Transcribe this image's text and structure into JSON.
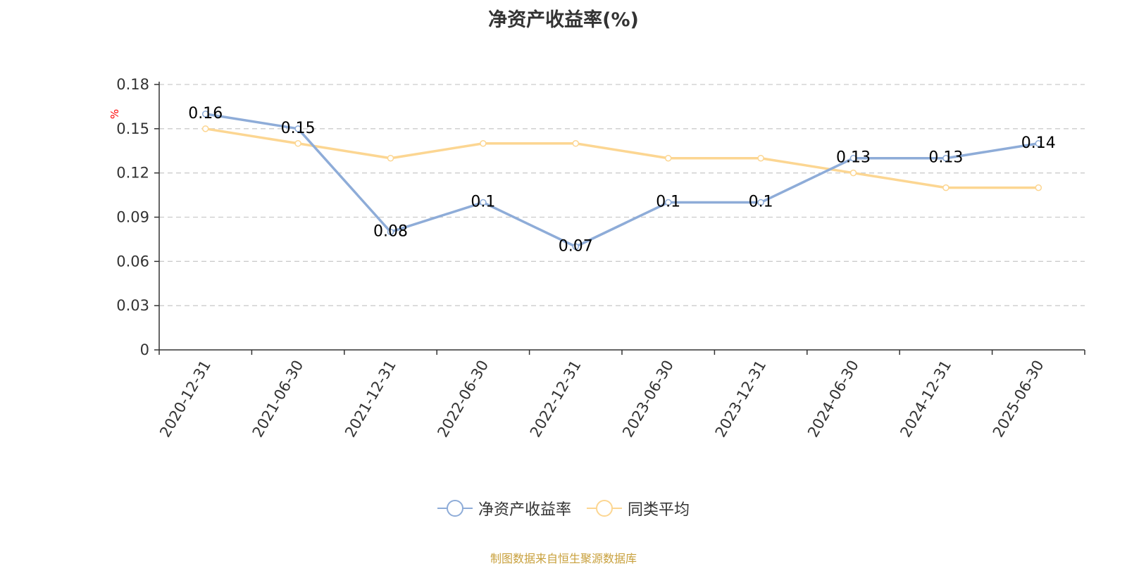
{
  "chart_data": {
    "type": "line",
    "title": "净资产收益率(%)",
    "ylabel": "%",
    "xlabel": "",
    "categories": [
      "2020-12-31",
      "2021-06-30",
      "2021-12-31",
      "2022-06-30",
      "2022-12-31",
      "2023-06-30",
      "2023-12-31",
      "2024-06-30",
      "2024-12-31",
      "2025-06-30"
    ],
    "series": [
      {
        "name": "净资产收益率",
        "values": [
          0.16,
          0.15,
          0.08,
          0.1,
          0.07,
          0.1,
          0.1,
          0.13,
          0.13,
          0.14
        ],
        "color": "#8eacd8",
        "data_labels": true
      },
      {
        "name": "同类平均",
        "values": [
          0.15,
          0.14,
          0.13,
          0.14,
          0.14,
          0.13,
          0.13,
          0.12,
          0.11,
          0.11
        ],
        "color": "#fcd692",
        "data_labels": false
      }
    ],
    "ylim": [
      0,
      0.18
    ],
    "yticks": [
      "0",
      "0.03",
      "0.06",
      "0.09",
      "0.12",
      "0.15",
      "0.18"
    ],
    "grid": true,
    "legend_position": "bottom"
  },
  "source_note": "制图数据来自恒生聚源数据库",
  "colors": {
    "axis": "#333333",
    "grid": "#cccccc",
    "unit_label": "#ff0000"
  }
}
